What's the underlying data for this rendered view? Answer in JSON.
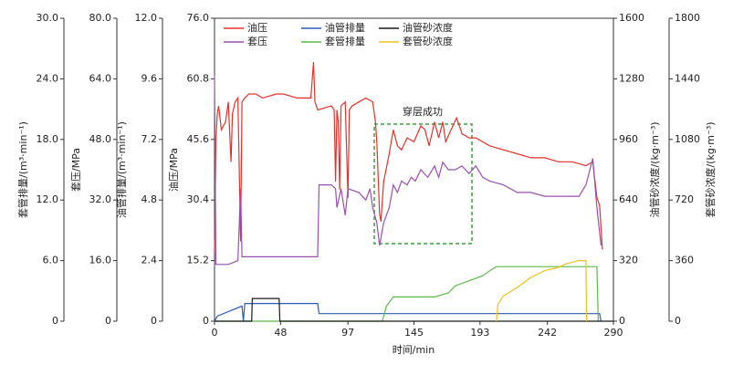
{
  "chart_data": {
    "type": "line",
    "annotation": "穿层成功",
    "xlabel": "时间/min",
    "xlim": [
      0,
      290
    ],
    "xticks": [
      0,
      48,
      97,
      145,
      193,
      242,
      290
    ],
    "axes": [
      {
        "label": "套管排量/(m³·min⁻¹)",
        "lim": [
          0,
          30
        ],
        "ticks": [
          0,
          {
            "value": 6,
            "label": "6.0"
          },
          {
            "value": 12,
            "label": "12.0"
          },
          {
            "value": 18,
            "label": "18.0"
          },
          {
            "value": 24,
            "label": "24.0"
          },
          {
            "value": 30,
            "label": "30.0"
          }
        ]
      },
      {
        "label": "套压/MPa",
        "lim": [
          0,
          80
        ],
        "ticks": [
          0,
          {
            "value": 16,
            "label": "16.0"
          },
          {
            "value": 32,
            "label": "32.0"
          },
          {
            "value": 48,
            "label": "48.0"
          },
          {
            "value": 64,
            "label": "64.0"
          },
          {
            "value": 80,
            "label": "80.0"
          }
        ]
      },
      {
        "label": "油管排量/(m³·min⁻¹)",
        "lim": [
          0,
          12
        ],
        "ticks": [
          0,
          2.4,
          4.8,
          7.2,
          9.6,
          {
            "value": 12,
            "label": "12.0"
          }
        ]
      },
      {
        "label": "油压/MPa",
        "lim": [
          0,
          76
        ],
        "ticks": [
          0,
          15.2,
          30.4,
          45.6,
          60.8,
          {
            "value": 76,
            "label": "76.0"
          }
        ]
      },
      {
        "label": "油管砂浓度/(kg·m⁻³)",
        "lim": [
          0,
          1600
        ],
        "ticks": [
          0,
          320,
          640,
          960,
          1280,
          1600
        ]
      },
      {
        "label": "套管砂浓度/(kg·m⁻³)",
        "lim": [
          0,
          1800
        ],
        "ticks": [
          0,
          360,
          720,
          1080,
          1440,
          1800
        ]
      }
    ],
    "series": [
      {
        "name": "油压",
        "color": "#e8302a",
        "axis": 3,
        "x": [
          0,
          1,
          2,
          3,
          5,
          8,
          10,
          12,
          13,
          15,
          17,
          19,
          20,
          22,
          25,
          30,
          35,
          45,
          50,
          60,
          70,
          72,
          73,
          75,
          85,
          87,
          88,
          89,
          90,
          91,
          92,
          95,
          97,
          98,
          100,
          105,
          110,
          115,
          117,
          118,
          120,
          121,
          123,
          127,
          130,
          133,
          136,
          140,
          145,
          150,
          153,
          156,
          160,
          163,
          166,
          168,
          172,
          176,
          180,
          185,
          190,
          200,
          210,
          220,
          230,
          240,
          250,
          260,
          270,
          275,
          278,
          280,
          282
        ],
        "values": [
          17,
          45,
          52,
          54,
          48,
          50,
          55,
          40,
          52,
          55,
          56,
          20,
          55,
          56,
          57,
          57,
          56,
          57,
          57,
          56,
          56,
          65,
          55,
          53,
          54,
          53,
          35,
          53,
          50,
          33,
          54,
          55,
          31,
          53,
          54,
          55,
          56,
          55,
          50,
          45,
          27,
          25,
          35,
          42,
          48,
          44,
          43,
          46,
          45,
          49,
          48,
          44,
          50,
          46,
          50,
          45,
          48,
          51,
          47,
          46,
          46,
          44,
          43,
          42,
          41,
          41,
          40,
          40,
          39,
          40,
          31,
          29,
          18
        ]
      },
      {
        "name": "套压",
        "color": "#9b4fb0",
        "axis": 1,
        "x": [
          0,
          1,
          2,
          10,
          17,
          19,
          20,
          25,
          50,
          75,
          76,
          85,
          88,
          89,
          92,
          95,
          97,
          105,
          110,
          113,
          115,
          118,
          120,
          123,
          127,
          130,
          133,
          136,
          140,
          143,
          146,
          150,
          155,
          160,
          163,
          166,
          170,
          175,
          180,
          185,
          190,
          195,
          200,
          210,
          220,
          230,
          240,
          250,
          260,
          265,
          270,
          275,
          278,
          281
        ],
        "values": [
          65,
          15,
          15,
          15,
          16,
          35,
          17,
          17,
          17,
          17,
          36,
          36,
          35,
          30,
          35,
          28,
          35,
          34,
          32,
          35,
          30,
          26,
          20,
          26,
          30,
          36,
          34,
          37,
          36,
          38,
          37,
          40,
          38,
          41,
          38,
          42,
          40,
          40,
          41,
          39,
          41,
          38,
          37,
          36,
          34,
          34,
          33,
          33,
          33,
          33,
          36,
          43,
          30,
          20
        ]
      },
      {
        "name": "油管排量",
        "color": "#2a5cb8",
        "axis": 2,
        "x": [
          0,
          2,
          20,
          21,
          22,
          75,
          76,
          280,
          281
        ],
        "values": [
          0,
          0.2,
          0.6,
          0,
          0.7,
          0.7,
          0.3,
          0.3,
          0
        ]
      },
      {
        "name": "套管排量",
        "color": "#5cba47",
        "axis": 0,
        "x": [
          0,
          122,
          125,
          130,
          160,
          170,
          175,
          185,
          195,
          200,
          205,
          278,
          279
        ],
        "values": [
          0,
          0,
          1.5,
          2.4,
          2.4,
          2.8,
          3.5,
          4,
          4.5,
          5,
          5.4,
          5.4,
          0
        ]
      },
      {
        "name": "油管砂浓度",
        "color": "#1a1a1a",
        "axis": 4,
        "x": [
          0,
          27,
          27.5,
          47,
          47.5,
          290
        ],
        "values": [
          0,
          0,
          120,
          120,
          0,
          0
        ]
      },
      {
        "name": "套管砂浓度",
        "color": "#f0c020",
        "axis": 5,
        "x": [
          205,
          206,
          210,
          220,
          230,
          240,
          250,
          255,
          265,
          270,
          270.5
        ],
        "values": [
          0,
          100,
          150,
          200,
          260,
          300,
          320,
          340,
          360,
          360,
          0
        ]
      }
    ]
  }
}
